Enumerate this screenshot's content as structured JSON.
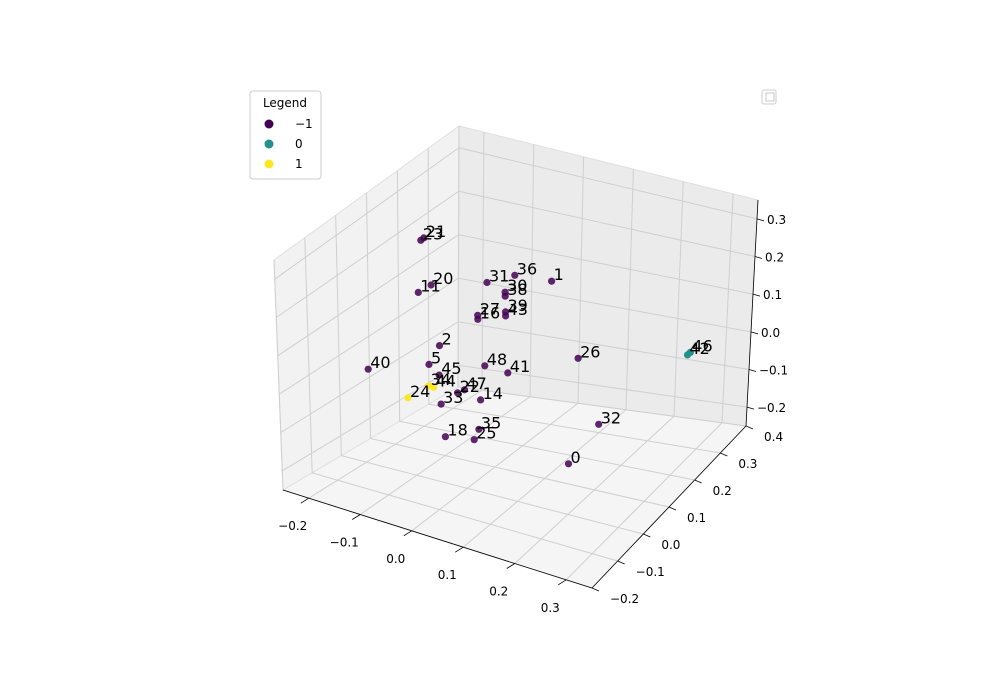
{
  "chart_data": {
    "type": "scatter",
    "projection": "3d",
    "xlim": [
      -0.25,
      0.35
    ],
    "ylim": [
      -0.2,
      0.4
    ],
    "zlim": [
      -0.25,
      0.35
    ],
    "x_ticks": [
      "−0.2",
      "−0.1",
      "0.0",
      "0.1",
      "0.2",
      "0.3"
    ],
    "y_ticks": [
      "−0.2",
      "−0.1",
      "0.0",
      "0.1",
      "0.2",
      "0.3",
      "0.4"
    ],
    "z_ticks": [
      "−0.2",
      "−0.1",
      "0.0",
      "0.1",
      "0.2",
      "0.3"
    ],
    "grid": true,
    "colormap": "viridis",
    "class_colors": {
      "-1": "#440154",
      "0": "#21918c",
      "1": "#fde725"
    },
    "legend": {
      "title": "Legend",
      "placement": "upper-left",
      "entries": [
        {
          "label": "−1",
          "color": "#440154"
        },
        {
          "label": "0",
          "color": "#21918c"
        },
        {
          "label": "1",
          "color": "#fde725"
        }
      ]
    },
    "points": [
      {
        "id": "0",
        "x": 0.25,
        "y": -0.08,
        "z": -0.05,
        "cls": -1
      },
      {
        "id": "1",
        "x": 0.15,
        "y": 0.05,
        "z": 0.3,
        "cls": -1
      },
      {
        "id": "2",
        "x": -0.06,
        "y": 0.02,
        "z": 0.08,
        "cls": -1
      },
      {
        "id": "5",
        "x": -0.07,
        "y": 0.0,
        "z": 0.04,
        "cls": -1
      },
      {
        "id": "11",
        "x": -0.1,
        "y": 0.02,
        "z": 0.2,
        "cls": -1
      },
      {
        "id": "14",
        "x": 0.02,
        "y": 0.02,
        "z": -0.03,
        "cls": -1
      },
      {
        "id": "16",
        "x": 0.0,
        "y": 0.05,
        "z": 0.15,
        "cls": -1
      },
      {
        "id": "18",
        "x": 0.0,
        "y": -0.07,
        "z": -0.08,
        "cls": -1
      },
      {
        "id": "20",
        "x": -0.08,
        "y": 0.03,
        "z": 0.22,
        "cls": -1
      },
      {
        "id": "21",
        "x": -0.08,
        "y": 0.01,
        "z": 0.35,
        "cls": -1
      },
      {
        "id": "22",
        "x": -0.02,
        "y": 0.01,
        "z": -0.02,
        "cls": -1
      },
      {
        "id": "23",
        "x": -0.08,
        "y": 0.0,
        "z": 0.35,
        "cls": -1
      },
      {
        "id": "24",
        "x": -0.09,
        "y": -0.04,
        "z": -0.03,
        "cls": 1
      },
      {
        "id": "25",
        "x": 0.04,
        "y": -0.04,
        "z": -0.09,
        "cls": -1
      },
      {
        "id": "26",
        "x": 0.2,
        "y": 0.05,
        "z": 0.12,
        "cls": -1
      },
      {
        "id": "27",
        "x": 0.0,
        "y": 0.05,
        "z": 0.16,
        "cls": -1
      },
      {
        "id": "30",
        "x": 0.05,
        "y": 0.06,
        "z": 0.23,
        "cls": -1
      },
      {
        "id": "31",
        "x": 0.02,
        "y": 0.05,
        "z": 0.25,
        "cls": -1
      },
      {
        "id": "32",
        "x": 0.25,
        "y": 0.03,
        "z": -0.02,
        "cls": -1
      },
      {
        "id": "33",
        "x": -0.03,
        "y": -0.03,
        "z": -0.03,
        "cls": -1
      },
      {
        "id": "34",
        "x": -0.06,
        "y": -0.02,
        "z": 0.0,
        "cls": 1
      },
      {
        "id": "35",
        "x": 0.05,
        "y": -0.04,
        "z": -0.06,
        "cls": -1
      },
      {
        "id": "36",
        "x": 0.07,
        "y": 0.06,
        "z": 0.28,
        "cls": -1
      },
      {
        "id": "38",
        "x": 0.05,
        "y": 0.06,
        "z": 0.22,
        "cls": -1
      },
      {
        "id": "39",
        "x": 0.05,
        "y": 0.06,
        "z": 0.18,
        "cls": -1
      },
      {
        "id": "40",
        "x": -0.18,
        "y": -0.02,
        "z": 0.0,
        "cls": -1
      },
      {
        "id": "41",
        "x": 0.07,
        "y": 0.03,
        "z": 0.05,
        "cls": -1
      },
      {
        "id": "42",
        "x": 0.25,
        "y": 0.35,
        "z": -0.05,
        "cls": 0
      },
      {
        "id": "43",
        "x": 0.05,
        "y": 0.06,
        "z": 0.17,
        "cls": -1
      },
      {
        "id": "44",
        "x": -0.05,
        "y": -0.02,
        "z": 0.0,
        "cls": 1
      },
      {
        "id": "45",
        "x": -0.05,
        "y": 0.0,
        "z": 0.02,
        "cls": -1
      },
      {
        "id": "46",
        "x": 0.25,
        "y": 0.36,
        "z": -0.05,
        "cls": 0
      },
      {
        "id": "47",
        "x": 0.0,
        "y": 0.0,
        "z": 0.0,
        "cls": -1
      },
      {
        "id": "48",
        "x": 0.03,
        "y": 0.02,
        "z": 0.06,
        "cls": -1
      }
    ]
  }
}
